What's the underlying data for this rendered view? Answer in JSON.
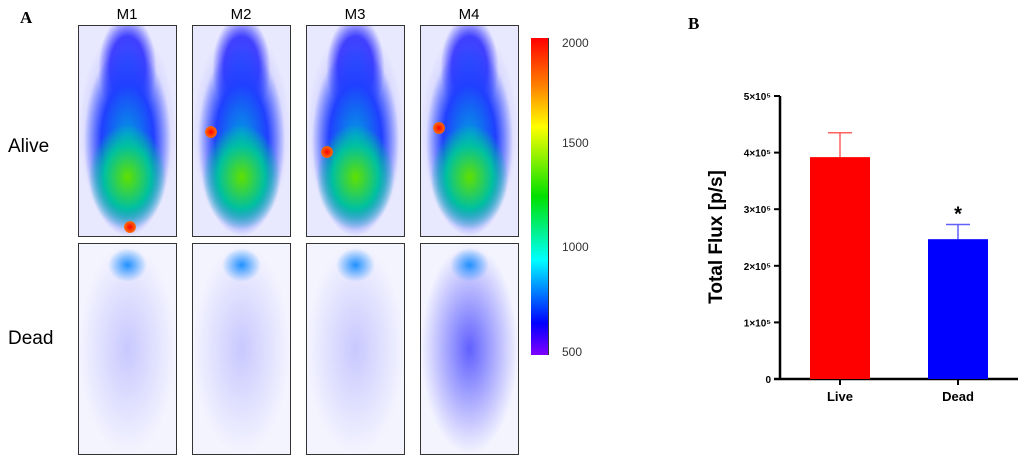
{
  "panel_a": {
    "letter": "A",
    "columns": [
      "M1",
      "M2",
      "M3",
      "M4"
    ],
    "rows": [
      "Alive",
      "Dead"
    ],
    "colorbar": {
      "ticks": [
        "2000",
        "1500",
        "1000",
        "500"
      ],
      "min": 500,
      "max": 2000,
      "colors": [
        "#ff0000",
        "#ffa000",
        "#ffff00",
        "#00e000",
        "#00ffff",
        "#0000ff",
        "#8000ff"
      ]
    }
  },
  "panel_b": {
    "letter": "B"
  },
  "chart_data": {
    "type": "bar",
    "categories": [
      "Live",
      "Dead"
    ],
    "values": [
      392000,
      247000
    ],
    "error_upper": [
      435000,
      273000
    ],
    "colors": [
      "#ff0000",
      "#0000ff"
    ],
    "ylabel": "Total Flux [p/s]",
    "ylim": [
      0,
      500000
    ],
    "yticks": [
      0,
      100000,
      200000,
      300000,
      400000,
      500000
    ],
    "ytick_labels": [
      "0",
      "1×10⁵",
      "2×10⁵",
      "3×10⁵",
      "4×10⁵",
      "5×10⁵"
    ],
    "annotations": [
      {
        "category": "Dead",
        "text": "*"
      }
    ],
    "grid": false
  }
}
